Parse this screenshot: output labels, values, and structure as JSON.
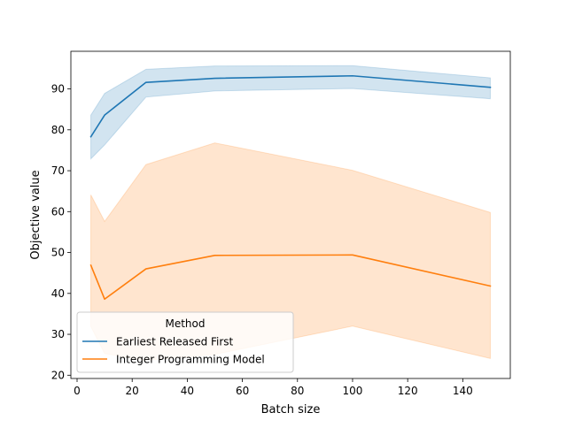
{
  "chart_data": {
    "type": "line",
    "title": "",
    "xlabel": "Batch size",
    "ylabel": "Objective value",
    "xlim": [
      -2.25,
      157.25
    ],
    "ylim": [
      19.2,
      99.2
    ],
    "xticks": [
      0,
      20,
      40,
      60,
      80,
      100,
      120,
      140
    ],
    "yticks": [
      20,
      30,
      40,
      50,
      60,
      70,
      80,
      90
    ],
    "grid": false,
    "legend": {
      "title": "Method",
      "position": "lower-left"
    },
    "x": [
      5,
      10,
      25,
      50,
      100,
      150
    ],
    "series": [
      {
        "name": "Earliest Released First",
        "color": "#1f77b4",
        "values": [
          78.3,
          83.6,
          91.6,
          92.6,
          93.2,
          90.4
        ],
        "lower": [
          72.9,
          76.3,
          88.0,
          89.5,
          90.1,
          87.6
        ],
        "upper": [
          83.6,
          88.9,
          94.8,
          95.6,
          95.7,
          92.7
        ]
      },
      {
        "name": "Integer Programming Model",
        "color": "#ff7f0e",
        "values": [
          46.9,
          38.6,
          46.0,
          49.3,
          49.4,
          41.8
        ],
        "lower": [
          31.9,
          25.3,
          23.6,
          25.1,
          32.0,
          24.1
        ],
        "upper": [
          64.1,
          57.6,
          71.5,
          76.8,
          70.1,
          59.8
        ]
      }
    ]
  }
}
